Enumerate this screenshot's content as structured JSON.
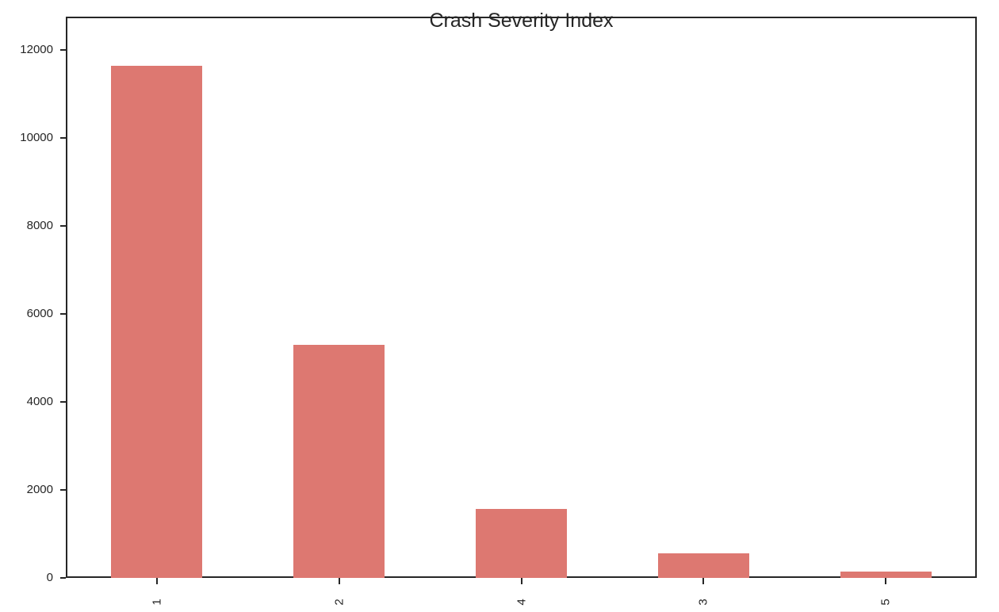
{
  "chart_data": {
    "type": "bar",
    "title": "Crash Severity Index",
    "xlabel": "",
    "ylabel": "",
    "categories": [
      "1",
      "2",
      "4",
      "3",
      "5"
    ],
    "values": [
      11640,
      5300,
      1570,
      560,
      145
    ],
    "yticks": [
      "0",
      "2000",
      "4000",
      "6000",
      "8000",
      "10000",
      "12000"
    ],
    "ylim": [
      0,
      12200
    ],
    "grid": false,
    "legend": null,
    "bar_color": "#dd7871"
  }
}
